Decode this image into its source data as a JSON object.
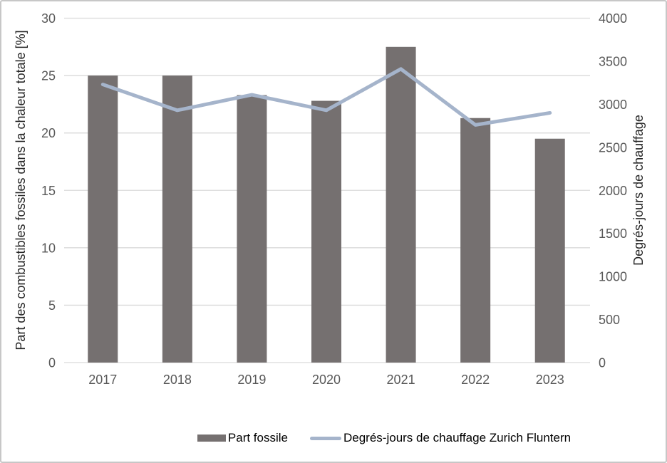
{
  "legend": {
    "bar_label": "Part fossile",
    "line_label": "Degrés-jours de chauffage Zurich Fluntern"
  },
  "axes": {
    "left": {
      "title": "Part des combustibles fossiles dans la chaleur totale [%]",
      "ticks": [
        30,
        25,
        20,
        15,
        10,
        5,
        0
      ],
      "max": 30
    },
    "right": {
      "title": "Degrés-jours de chauffage",
      "ticks": [
        4000,
        3500,
        3000,
        2500,
        2000,
        1500,
        1000,
        500,
        0
      ],
      "max": 4000
    }
  },
  "chart_data": {
    "type": "bar+line",
    "categories": [
      "2017",
      "2018",
      "2019",
      "2020",
      "2021",
      "2022",
      "2023"
    ],
    "series": [
      {
        "name": "Part fossile",
        "type": "bar",
        "axis": "left",
        "values": [
          25.0,
          25.0,
          23.3,
          22.8,
          27.5,
          21.3,
          19.5
        ]
      },
      {
        "name": "Degrés-jours de chauffage Zurich Fluntern",
        "type": "line",
        "axis": "right",
        "values": [
          3230,
          2930,
          3110,
          2930,
          3410,
          2760,
          2900
        ]
      }
    ],
    "title": "",
    "xlabel": "",
    "ylabel_left": "Part des combustibles fossiles dans la chaleur totale [%]",
    "ylabel_right": "Degrés-jours de chauffage",
    "ylim_left": [
      0,
      30
    ],
    "ylim_right": [
      0,
      4000
    ],
    "grid": true,
    "legend_position": "bottom"
  },
  "colors": {
    "bar": "#757070",
    "line": "#a5b4cb",
    "grid": "#d9d9d9",
    "tick_text": "#595959",
    "axis_title": "#262626",
    "frame_border": "#c7c7c7"
  }
}
